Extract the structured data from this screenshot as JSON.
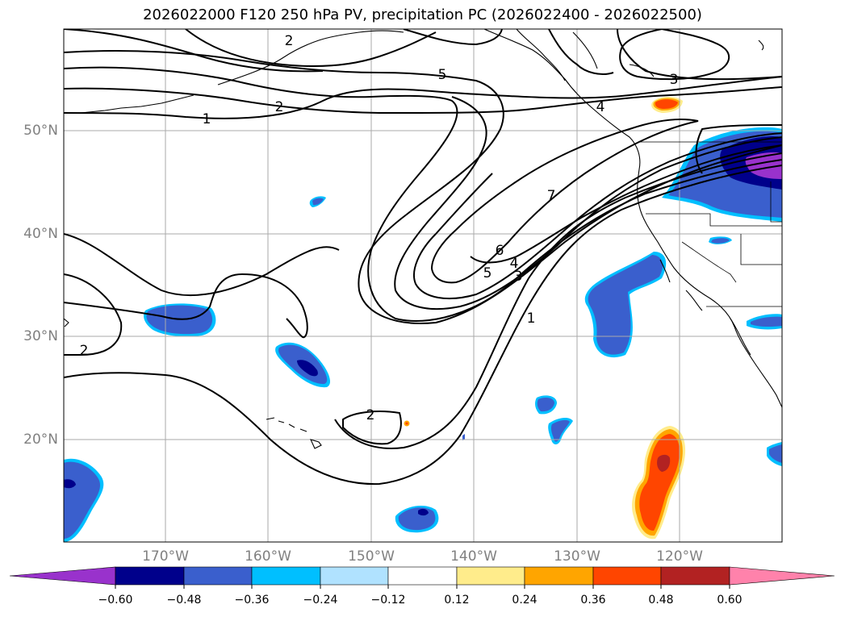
{
  "title": "2026022000 F120 250 hPa PV, precipitation PC (2026022400 - 2026022500)",
  "axes": {
    "lat_labels": [
      "50°N",
      "40°N",
      "30°N",
      "20°N"
    ],
    "lon_labels": [
      "170°W",
      "160°W",
      "150°W",
      "140°W",
      "130°W",
      "120°W"
    ]
  },
  "contour_labels": [
    "1",
    "2",
    "5",
    "3",
    "2",
    "7",
    "6",
    "5",
    "4",
    "3",
    "1",
    "2",
    "2",
    "4"
  ],
  "colorbar": {
    "ticks": [
      "−0.60",
      "−0.48",
      "−0.36",
      "−0.24",
      "−0.12",
      "0.12",
      "0.24",
      "0.36",
      "0.48",
      "0.60"
    ],
    "colors": [
      "#9932cc",
      "#00008b",
      "#3a5fcd",
      "#00bfff",
      "#b0e2ff",
      "#ffffff",
      "#ffec8b",
      "#ffa500",
      "#ff4500",
      "#b22222",
      "#ff82ab"
    ]
  }
}
